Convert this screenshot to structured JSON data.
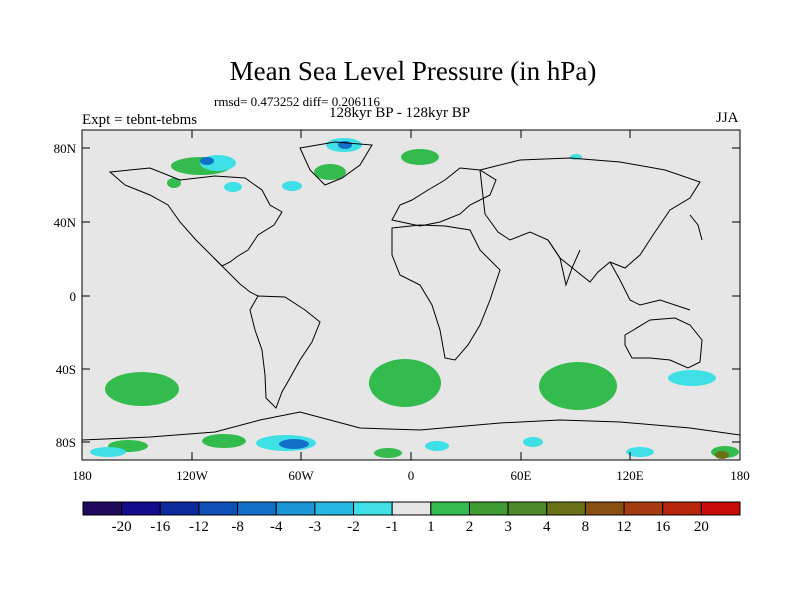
{
  "title": "Mean Sea Level Pressure (in hPa)",
  "stats": "rmsd= 0.473252 diff= 0.206116",
  "experiment": "Expt = tebnt-tebms",
  "period": "128kyr BP - 128kyr BP",
  "season": "JJA",
  "y_axis_labels": [
    "80N",
    "40N",
    "0",
    "40S",
    "80S"
  ],
  "x_axis_labels": [
    "180",
    "120W",
    "60W",
    "0",
    "60E",
    "120E",
    "180"
  ],
  "colorbar": {
    "labels": [
      "-20",
      "-16",
      "-12",
      "-8",
      "-4",
      "-3",
      "-2",
      "-1",
      "1",
      "2",
      "3",
      "4",
      "8",
      "12",
      "16",
      "20"
    ],
    "colors": [
      "#1f0a5c",
      "#130c8c",
      "#0d2a9c",
      "#0f4fb8",
      "#1270c8",
      "#1c95d6",
      "#25b8e0",
      "#3ee0e6",
      "#e6e6e6",
      "#33bb4d",
      "#3f9a34",
      "#4f8a2a",
      "#6a7218",
      "#8a5012",
      "#a63a10",
      "#b8240a",
      "#c80c08"
    ]
  },
  "colors": {
    "background_field": "#e6e6e6",
    "positive": "#33bb4d",
    "negative": "#3ee0e6",
    "strong_negative": "#1270c8"
  }
}
